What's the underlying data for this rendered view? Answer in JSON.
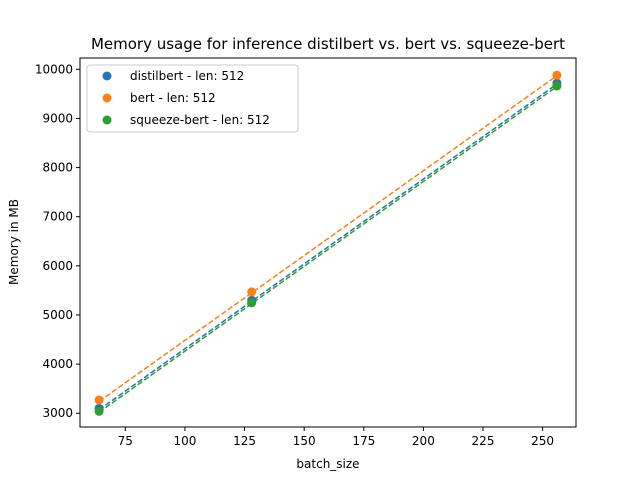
{
  "chart_data": {
    "type": "scatter",
    "title": "Memory usage for inference distilbert vs. bert vs. squeeze-bert",
    "xlabel": "batch_size",
    "ylabel": "Memory in MB",
    "xlim": [
      56,
      264
    ],
    "ylim": [
      2720,
      10230
    ],
    "xticks": [
      75,
      100,
      125,
      150,
      175,
      200,
      225,
      250
    ],
    "yticks": [
      3000,
      4000,
      5000,
      6000,
      7000,
      8000,
      9000,
      10000
    ],
    "grid": false,
    "legend_position": "top-left",
    "series": [
      {
        "name": "distilbert - len: 512",
        "color": "#1f77b4",
        "x": [
          64,
          128,
          256
        ],
        "y": [
          3100,
          5300,
          9720
        ],
        "fit": [
          3070,
          9700
        ]
      },
      {
        "name": "bert - len: 512",
        "color": "#ff7f0e",
        "x": [
          64,
          128,
          256
        ],
        "y": [
          3270,
          5470,
          9880
        ],
        "fit": [
          3240,
          9870
        ]
      },
      {
        "name": "squeeze-bert - len: 512",
        "color": "#2ca02c",
        "x": [
          64,
          128,
          256
        ],
        "y": [
          3040,
          5250,
          9660
        ],
        "fit": [
          3020,
          9650
        ]
      }
    ]
  }
}
